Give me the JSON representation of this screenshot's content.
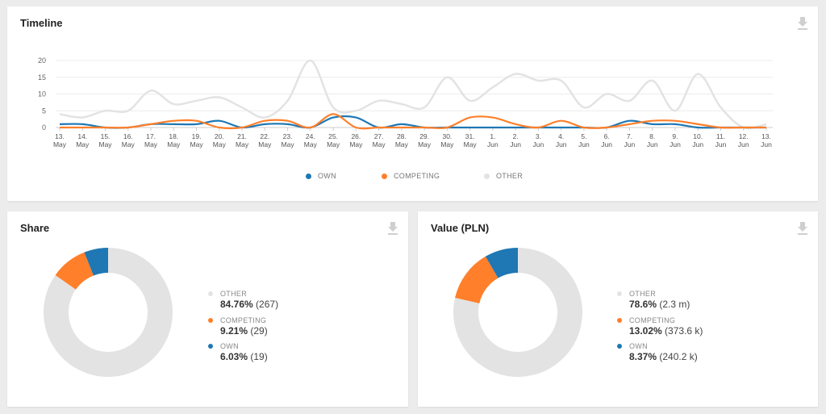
{
  "colors": {
    "own": "#1f77b4",
    "competing": "#ff7f2a",
    "other": "#e3e3e3"
  },
  "icons": {
    "download": "download-icon"
  },
  "timeline": {
    "title": "Timeline",
    "legend": [
      {
        "label": "OWN",
        "color": "#1f77b4"
      },
      {
        "label": "COMPETING",
        "color": "#ff7f2a"
      },
      {
        "label": "OTHER",
        "color": "#e3e3e3"
      }
    ]
  },
  "share": {
    "title": "Share",
    "items": [
      {
        "label": "OTHER",
        "pct": "84.76%",
        "count": "(267)",
        "color": "#e3e3e3"
      },
      {
        "label": "COMPETING",
        "pct": "9.21%",
        "count": "(29)",
        "color": "#ff7f2a"
      },
      {
        "label": "OWN",
        "pct": "6.03%",
        "count": "(19)",
        "color": "#1f77b4"
      }
    ]
  },
  "value": {
    "title": "Value (PLN)",
    "items": [
      {
        "label": "OTHER",
        "pct": "78.6%",
        "count": "(2.3 m)",
        "color": "#e3e3e3"
      },
      {
        "label": "COMPETING",
        "pct": "13.02%",
        "count": "(373.6 k)",
        "color": "#ff7f2a"
      },
      {
        "label": "OWN",
        "pct": "8.37%",
        "count": "(240.2 k)",
        "color": "#1f77b4"
      }
    ]
  },
  "chart_data": [
    {
      "type": "line",
      "title": "Timeline",
      "x": [
        [
          "13.",
          "May"
        ],
        [
          "14.",
          "May"
        ],
        [
          "15.",
          "May"
        ],
        [
          "16.",
          "May"
        ],
        [
          "17.",
          "May"
        ],
        [
          "18.",
          "May"
        ],
        [
          "19.",
          "May"
        ],
        [
          "20.",
          "May"
        ],
        [
          "21.",
          "May"
        ],
        [
          "22.",
          "May"
        ],
        [
          "23.",
          "May"
        ],
        [
          "24.",
          "May"
        ],
        [
          "25.",
          "May"
        ],
        [
          "26.",
          "May"
        ],
        [
          "27.",
          "May"
        ],
        [
          "28.",
          "May"
        ],
        [
          "29.",
          "May"
        ],
        [
          "30.",
          "May"
        ],
        [
          "31.",
          "May"
        ],
        [
          "1.",
          "Jun"
        ],
        [
          "2.",
          "Jun"
        ],
        [
          "3.",
          "Jun"
        ],
        [
          "4.",
          "Jun"
        ],
        [
          "5.",
          "Jun"
        ],
        [
          "6.",
          "Jun"
        ],
        [
          "7.",
          "Jun"
        ],
        [
          "8.",
          "Jun"
        ],
        [
          "9.",
          "Jun"
        ],
        [
          "10.",
          "Jun"
        ],
        [
          "11.",
          "Jun"
        ],
        [
          "12.",
          "Jun"
        ],
        [
          "13.",
          "Jun"
        ]
      ],
      "yticks": [
        0,
        5,
        10,
        15,
        20
      ],
      "ylim": [
        0,
        20
      ],
      "grid": true,
      "legend_position": "bottom",
      "series": [
        {
          "name": "OWN",
          "color": "#1f77b4",
          "values": [
            1,
            1,
            0,
            0,
            1,
            1,
            1,
            2,
            0,
            1,
            1,
            0,
            3,
            3,
            0,
            1,
            0,
            0,
            0,
            0,
            0,
            0,
            0,
            0,
            0,
            2,
            1,
            1,
            0,
            0,
            0,
            0
          ]
        },
        {
          "name": "COMPETING",
          "color": "#ff7f2a",
          "values": [
            0,
            0,
            0,
            0,
            1,
            2,
            2,
            0,
            0,
            2,
            2,
            0,
            4,
            0,
            0,
            0,
            0,
            0,
            3,
            3,
            1,
            0,
            2,
            0,
            0,
            1,
            2,
            2,
            1,
            0,
            0,
            0
          ]
        },
        {
          "name": "OTHER",
          "color": "#e3e3e3",
          "values": [
            4,
            3,
            5,
            5,
            11,
            7,
            8,
            9,
            6,
            3,
            8,
            20,
            6,
            5,
            8,
            7,
            6,
            15,
            8,
            12,
            16,
            14,
            14,
            6,
            10,
            8,
            14,
            5,
            16,
            6,
            0,
            1
          ]
        }
      ]
    },
    {
      "type": "pie",
      "title": "Share",
      "labels": [
        "OTHER",
        "COMPETING",
        "OWN"
      ],
      "values": [
        84.76,
        9.21,
        6.03
      ],
      "counts": [
        267,
        29,
        19
      ],
      "colors": [
        "#e3e3e3",
        "#ff7f2a",
        "#1f77b4"
      ],
      "donut": true,
      "legend_position": "right"
    },
    {
      "type": "pie",
      "title": "Value (PLN)",
      "labels": [
        "OTHER",
        "COMPETING",
        "OWN"
      ],
      "values": [
        78.6,
        13.02,
        8.37
      ],
      "colors": [
        "#e3e3e3",
        "#ff7f2a",
        "#1f77b4"
      ],
      "donut": true,
      "legend_position": "right"
    }
  ]
}
